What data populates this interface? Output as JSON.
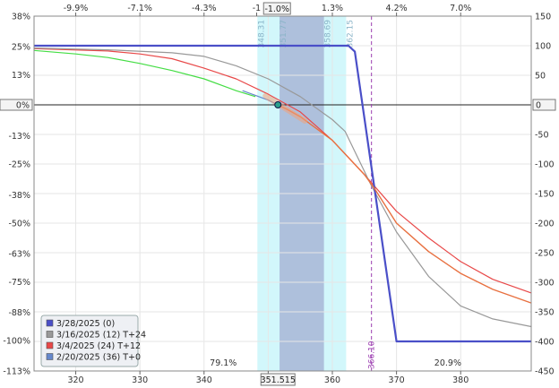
{
  "chart_data": {
    "type": "line",
    "title": "",
    "xlabel": "",
    "ylabel": "",
    "xlim": [
      313.5,
      391
    ],
    "ylim_left_pct": [
      -113,
      38
    ],
    "ylim_right": [
      -450,
      150
    ],
    "bottom_ticks": [
      "320",
      "330",
      "340",
      "350",
      "360",
      "370",
      "380"
    ],
    "bottom_tick_values": [
      320,
      330,
      340,
      350,
      360,
      370,
      380
    ],
    "top_ticks": [
      "-9.9%",
      "-7.1%",
      "-4.3%",
      "-1",
      "1.3%",
      "4.2%",
      "7.0%"
    ],
    "top_tick_values": [
      320,
      330,
      340,
      348.2,
      360,
      370,
      380
    ],
    "top_current_label": "-1.0%",
    "left_ticks": [
      "38%",
      "25%",
      "13%",
      "0%",
      "-13%",
      "-25%",
      "-38%",
      "-50%",
      "-63%",
      "-75%",
      "-88%",
      "-100%",
      "-113%"
    ],
    "left_tick_values": [
      38,
      25,
      13,
      0,
      -13,
      -25,
      -38,
      -50,
      -63,
      -75,
      -88,
      -100,
      -113
    ],
    "right_ticks": [
      "150",
      "100",
      "50",
      "0",
      "-50",
      "-100",
      "-150",
      "-200",
      "-250",
      "-300",
      "-350",
      "-400",
      "-450"
    ],
    "right_tick_values": [
      150,
      100,
      50,
      0,
      -50,
      -100,
      -150,
      -200,
      -250,
      -300,
      -350,
      -400,
      -450
    ],
    "left_zero_label": "0%",
    "right_zero_label": "0",
    "current_price_label": "351.515",
    "current_price": 351.515,
    "current_pl": 0,
    "breakeven_label": "366.10",
    "breakeven": 366.1,
    "bands": [
      {
        "from": 348.31,
        "to": 362.15,
        "color": "#d2f7fb"
      },
      {
        "from": 351.77,
        "to": 358.69,
        "color": "#aec0dc"
      }
    ],
    "band_labels": [
      {
        "text": "348.31",
        "x": 348.31
      },
      {
        "text": "351.77",
        "x": 351.77
      },
      {
        "text": "358.69",
        "x": 358.69
      },
      {
        "text": "362.15",
        "x": 362.15
      }
    ],
    "prob_labels": [
      {
        "text": "79.1%",
        "x": 343
      },
      {
        "text": "20.9%",
        "x": 378
      }
    ],
    "series": [
      {
        "name": "3/28/2025 (0)",
        "color": "#4a4fc8",
        "width": 2.2,
        "x": [
          313.5,
          362.5,
          363.5,
          370,
          391
        ],
        "y": [
          100,
          100,
          90,
          -400,
          -400
        ]
      },
      {
        "name": "3/16/2025 (12) T+24",
        "color": "#999999",
        "width": 1.2,
        "x": [
          313.5,
          325,
          335,
          340,
          345,
          350,
          355,
          360,
          362,
          366,
          370,
          375,
          380,
          385,
          391
        ],
        "y": [
          96,
          93,
          88,
          82,
          66,
          44,
          14,
          -25,
          -45,
          -135,
          -215,
          -290,
          -340,
          -362,
          -375
        ]
      },
      {
        "name": "3/4/2025 (24) T+12",
        "color": "#e84848",
        "width": 1.2,
        "x": [
          313.5,
          325,
          330,
          335,
          340,
          345,
          350,
          355,
          360,
          365,
          370,
          375,
          380,
          385,
          391
        ],
        "y": [
          95,
          91,
          86,
          78,
          62,
          44,
          18,
          -12,
          -60,
          -118,
          -180,
          -225,
          -265,
          -295,
          -318
        ]
      },
      {
        "name": "2/20/2025 (36) T+0",
        "color": "#6688cc",
        "width": 1.2,
        "x": [
          346,
          348,
          350,
          351.515
        ],
        "y": [
          24,
          16,
          8,
          0
        ]
      }
    ],
    "extra_lines": [
      {
        "color": "#44dd44",
        "width": 1.2,
        "x": [
          313.5,
          320,
          325,
          330,
          335,
          340,
          345,
          348
        ],
        "y": [
          92,
          86,
          80,
          70,
          58,
          44,
          24,
          14
        ]
      },
      {
        "color": "#e87040",
        "width": 1.4,
        "x": [
          351.515,
          353,
          355,
          360,
          365,
          366.6,
          370,
          375,
          380,
          385,
          391
        ],
        "y": [
          0,
          -8,
          -20,
          -60,
          -118,
          -142,
          -200,
          -248,
          -285,
          -312,
          -335
        ]
      }
    ],
    "legend_position": "bottom-left",
    "grid": true
  }
}
